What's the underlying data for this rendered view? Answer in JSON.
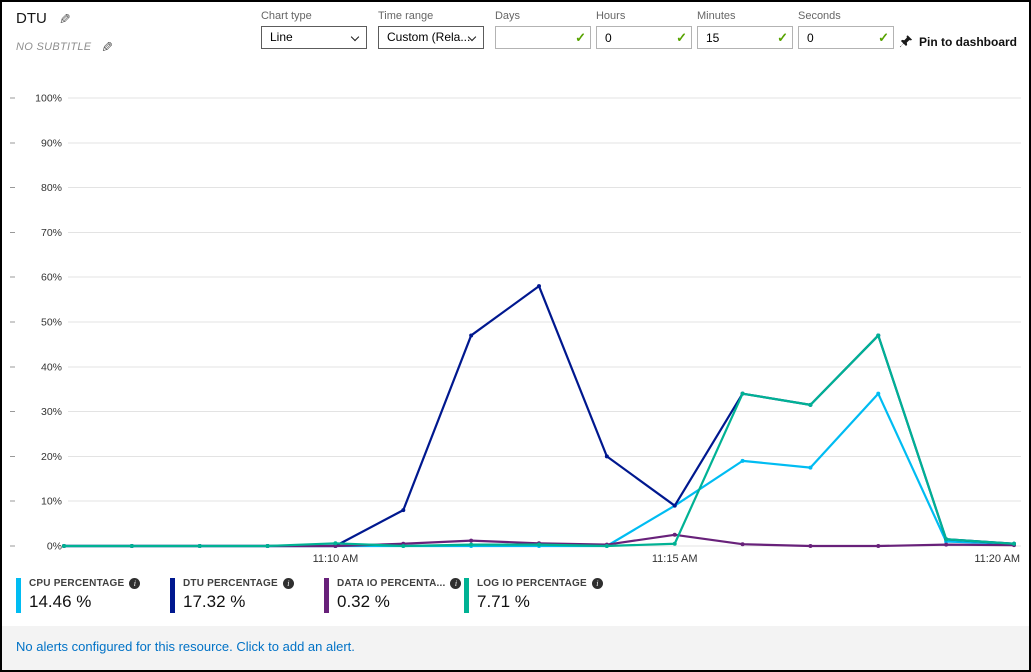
{
  "header": {
    "title": "DTU",
    "subtitle": "NO SUBTITLE"
  },
  "toolbar": {
    "chart_type": {
      "label": "Chart type",
      "value": "Line"
    },
    "time_range": {
      "label": "Time range",
      "value": "Custom (Rela..."
    },
    "days": {
      "label": "Days",
      "value": ""
    },
    "hours": {
      "label": "Hours",
      "value": "0"
    },
    "minutes": {
      "label": "Minutes",
      "value": "15"
    },
    "seconds": {
      "label": "Seconds",
      "value": "0"
    },
    "pin_label": "Pin to dashboard"
  },
  "legend": {
    "items": [
      {
        "label": "CPU PERCENTAGE",
        "value": "14.46 %",
        "color": "#00bcf2"
      },
      {
        "label": "DTU PERCENTAGE",
        "value": "17.32 %",
        "color": "#00188f"
      },
      {
        "label": "DATA IO PERCENTA...",
        "value": "0.32 %",
        "color": "#68217a"
      },
      {
        "label": "LOG IO PERCENTAGE",
        "value": "7.71 %",
        "color": "#00b294"
      }
    ]
  },
  "footer": {
    "alert_text": "No alerts configured for this resource. Click to add an alert."
  },
  "chart_data": {
    "type": "line",
    "title": "DTU",
    "unit": "percent",
    "ylim": [
      0,
      100
    ],
    "y_tick_step": 10,
    "times": [
      "11:06 AM",
      "11:07 AM",
      "11:08 AM",
      "11:09 AM",
      "11:10 AM",
      "11:11 AM",
      "11:12 AM",
      "11:13 AM",
      "11:14 AM",
      "11:15 AM",
      "11:16 AM",
      "11:17 AM",
      "11:18 AM",
      "11:19 AM",
      "11:20 AM"
    ],
    "x_ticks": [
      {
        "label": "11:10 AM",
        "index": 4
      },
      {
        "label": "11:15 AM",
        "index": 9
      },
      {
        "label": "11:20 AM",
        "index": 14
      }
    ],
    "series": [
      {
        "name": "CPU PERCENTAGE",
        "color": "#00bcf2",
        "values": [
          0,
          0,
          0,
          0,
          0,
          0,
          0,
          0,
          0,
          9,
          19,
          17.5,
          34,
          1,
          0.5
        ]
      },
      {
        "name": "DTU PERCENTAGE",
        "color": "#00188f",
        "values": [
          0,
          0,
          0,
          0,
          0,
          8,
          47,
          58,
          20,
          9,
          34,
          31.5,
          47,
          1.5,
          0.5
        ]
      },
      {
        "name": "DATA IO PERCENTAGE",
        "color": "#68217a",
        "values": [
          0,
          0,
          0,
          0,
          0,
          0.5,
          1.2,
          0.6,
          0.3,
          2.5,
          0.4,
          0,
          0,
          0.3,
          0.2
        ]
      },
      {
        "name": "LOG IO PERCENTAGE",
        "color": "#00b294",
        "values": [
          0,
          0,
          0,
          0,
          0.6,
          0,
          0.3,
          0.3,
          0,
          0.5,
          34,
          31.5,
          47,
          1.5,
          0.5
        ]
      }
    ],
    "grid": true,
    "legend_position": "bottom"
  }
}
